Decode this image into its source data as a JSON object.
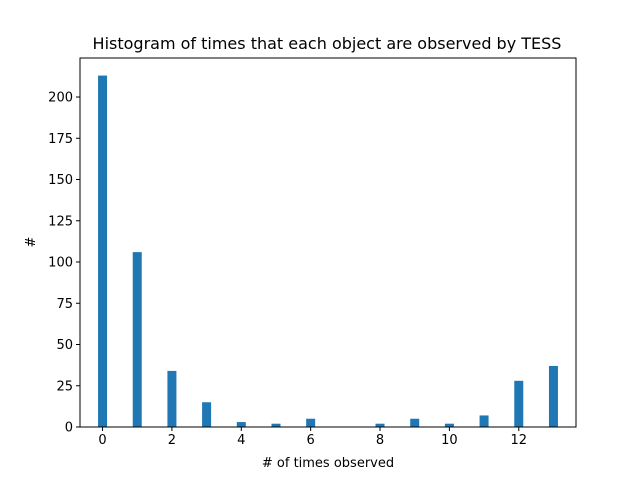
{
  "chart_data": {
    "type": "bar",
    "title": "Histogram of times that each object are observed by TESS",
    "xlabel": "# of times observed",
    "ylabel": "#",
    "x": [
      0,
      1,
      2,
      3,
      4,
      5,
      6,
      7,
      8,
      9,
      10,
      11,
      12,
      13
    ],
    "values": [
      213,
      106,
      34,
      15,
      3,
      2,
      5,
      0,
      2,
      5,
      2,
      7,
      28,
      37
    ],
    "xlim": [
      -0.65,
      13.65
    ],
    "ylim": [
      0,
      223.65
    ],
    "xticks": [
      0,
      2,
      4,
      6,
      8,
      10,
      12
    ],
    "yticks": [
      0,
      25,
      50,
      75,
      100,
      125,
      150,
      175,
      200
    ],
    "bar_color": "#1f77b4",
    "grid": false,
    "legend": "none"
  }
}
